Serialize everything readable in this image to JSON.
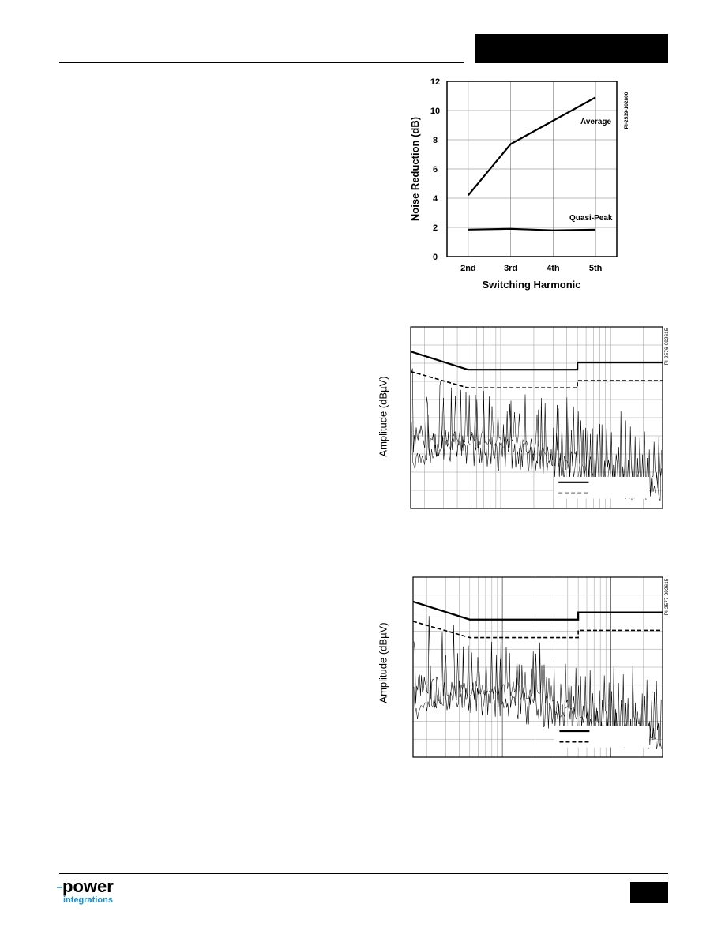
{
  "brand": {
    "logo_top": "power",
    "logo_bottom": "integrations",
    "accent_color": "#1a8fd0"
  },
  "charts": {
    "noise": {
      "id_code": "PI-2539-102800",
      "xlabel": "Switching Harmonic",
      "ylabel": "Noise Reduction (dB)",
      "average_label": "Average",
      "quasi_label": "Quasi-Peak"
    },
    "emi1": {
      "id_code": "PI-2576-092615",
      "ylabel": "Amplitude (dBµV)"
    },
    "emi2": {
      "id_code": "PI-2577-092615",
      "ylabel": "Amplitude (dBµV)"
    }
  },
  "chart_data": [
    {
      "type": "line",
      "xlabel": "Switching Harmonic",
      "ylabel": "Noise Reduction (dB)",
      "categories": [
        "2nd",
        "3rd",
        "4th",
        "5th"
      ],
      "ylim": [
        0,
        12
      ],
      "yticks": [
        0,
        2,
        4,
        6,
        8,
        10,
        12
      ],
      "grid": true,
      "series": [
        {
          "name": "Average",
          "values": [
            4.2,
            7.7,
            9.3,
            10.9
          ]
        },
        {
          "name": "Quasi-Peak",
          "values": [
            1.85,
            1.9,
            1.8,
            1.85
          ]
        }
      ]
    },
    {
      "type": "line",
      "ylabel": "Amplitude (dBµV)",
      "grid": true,
      "xscale": "log",
      "series": [
        {
          "name": "limit-quasi-peak-solid",
          "values": []
        },
        {
          "name": "limit-average-dashed",
          "values": []
        }
      ]
    },
    {
      "type": "line",
      "ylabel": "Amplitude (dBµV)",
      "grid": true,
      "xscale": "log",
      "series": [
        {
          "name": "limit-quasi-peak-solid",
          "values": []
        },
        {
          "name": "limit-average-dashed",
          "values": []
        }
      ]
    }
  ]
}
